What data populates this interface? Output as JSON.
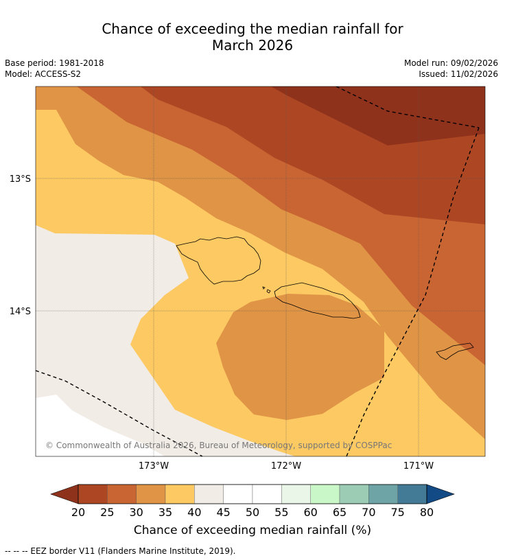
{
  "title_line1": "Chance of exceeding the median rainfall for",
  "title_line2": "March 2026",
  "base_period": "Base period: 1981-2018",
  "model": "Model: ACCESS-S2",
  "model_run": "Model run: 09/02/2026",
  "issued": "Issued: 11/02/2026",
  "lat_labels": [
    "13°S",
    "14°S"
  ],
  "lon_labels": [
    "173°W",
    "172°W",
    "171°W"
  ],
  "copyright": "© Commonwealth of Australia 2026, Bureau of Meteorology, supported by COSPPac",
  "colorbar": {
    "label": "Chance of exceeding median rainfall (%)",
    "ticks": [
      "20",
      "25",
      "30",
      "35",
      "40",
      "45",
      "50",
      "55",
      "60",
      "65",
      "70",
      "75",
      "80"
    ],
    "colors": [
      "#8f321c",
      "#ad4723",
      "#c96433",
      "#e09446",
      "#fdc963",
      "#f1ece6",
      "#ffffff",
      "#ffffff",
      "#eaf6e8",
      "#c9f7c8",
      "#9ccdb4",
      "#6ea4a6",
      "#437a96",
      "#114a84"
    ]
  },
  "legend_note": "--  --  -- EEZ border V11 (Flanders Marine Institute, 2019)."
}
